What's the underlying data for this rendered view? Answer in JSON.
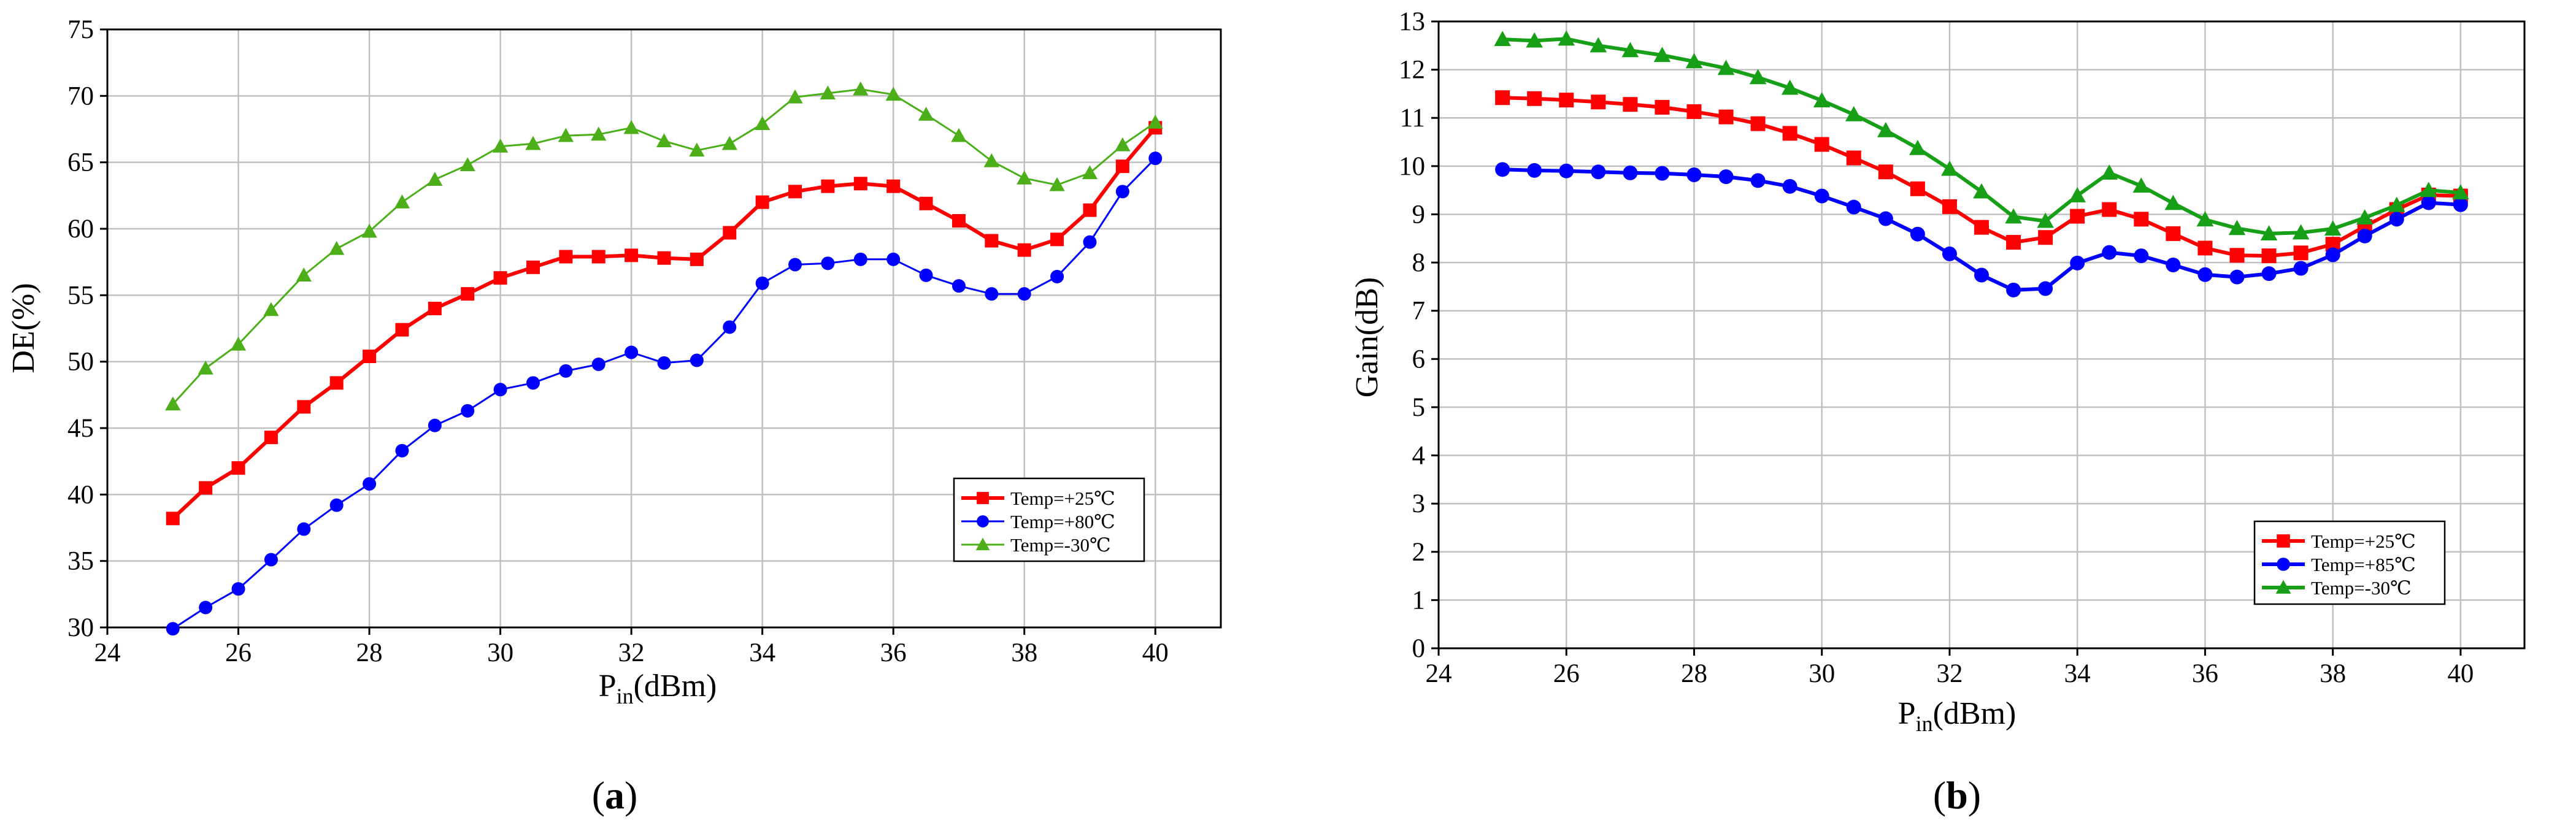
{
  "figure": {
    "panel_labels": [
      {
        "open": "(",
        "letter": "a",
        "close": ")"
      },
      {
        "open": "(",
        "letter": "b",
        "close": ")"
      }
    ]
  },
  "chart_data": [
    {
      "id": "a",
      "type": "line",
      "title": "",
      "xlabel": {
        "main": "P",
        "sub": "in",
        "rest": "(dBm)"
      },
      "ylabel": "DE(%)",
      "xlim": [
        24,
        41
      ],
      "ylim": [
        30,
        75
      ],
      "xticks": [
        24,
        26,
        28,
        30,
        32,
        34,
        36,
        38,
        40
      ],
      "yticks": [
        30,
        35,
        40,
        45,
        50,
        55,
        60,
        65,
        70,
        75
      ],
      "grid": true,
      "legend_position": "lower-right",
      "x": [
        25,
        25.5,
        26,
        26.5,
        27,
        27.5,
        28,
        28.5,
        29,
        29.5,
        30,
        30.5,
        31,
        31.5,
        32,
        32.5,
        33,
        33.5,
        34,
        34.5,
        35,
        35.5,
        36,
        36.5,
        37,
        37.5,
        38,
        38.5,
        39,
        39.5,
        40
      ],
      "series": [
        {
          "name": "Temp=+25℃",
          "color": "#ff0000",
          "marker": "square",
          "line_weight": "thick",
          "values": [
            38.2,
            40.5,
            42.0,
            44.3,
            46.6,
            48.4,
            50.4,
            52.4,
            54.0,
            55.1,
            56.3,
            57.1,
            57.9,
            57.9,
            58.0,
            57.8,
            57.7,
            59.7,
            62.0,
            62.8,
            63.2,
            63.4,
            63.2,
            61.9,
            60.6,
            59.1,
            58.4,
            59.2,
            61.4,
            64.7,
            67.6
          ]
        },
        {
          "name": "Temp=+80℃",
          "color": "#0000ff",
          "marker": "circle",
          "line_weight": "thin",
          "values": [
            29.9,
            31.5,
            32.9,
            35.1,
            37.4,
            39.2,
            40.8,
            43.3,
            45.2,
            46.3,
            47.9,
            48.4,
            49.3,
            49.8,
            50.7,
            49.9,
            50.1,
            52.6,
            55.9,
            57.3,
            57.4,
            57.7,
            57.7,
            56.5,
            55.7,
            55.1,
            55.1,
            56.4,
            59.0,
            62.8,
            65.3
          ]
        },
        {
          "name": "Temp=-30℃",
          "color": "#4caf1a",
          "marker": "triangle",
          "line_weight": "thin",
          "values": [
            46.8,
            49.5,
            51.3,
            53.9,
            56.5,
            58.5,
            59.8,
            62.0,
            63.7,
            64.8,
            66.2,
            66.4,
            67.0,
            67.1,
            67.6,
            66.6,
            65.9,
            66.4,
            67.9,
            69.9,
            70.2,
            70.5,
            70.1,
            68.6,
            67.0,
            65.1,
            63.8,
            63.3,
            64.2,
            66.3,
            68.0
          ]
        }
      ]
    },
    {
      "id": "b",
      "type": "line",
      "title": "",
      "xlabel": {
        "main": "P",
        "sub": "in",
        "rest": "(dBm)"
      },
      "ylabel": "Gain(dB)",
      "xlim": [
        24,
        41
      ],
      "ylim": [
        0,
        13
      ],
      "xticks": [
        24,
        26,
        28,
        30,
        32,
        34,
        36,
        38,
        40
      ],
      "yticks": [
        0,
        1,
        2,
        3,
        4,
        5,
        6,
        7,
        8,
        9,
        10,
        11,
        12,
        13
      ],
      "grid": true,
      "legend_position": "lower-right",
      "x": [
        25,
        25.5,
        26,
        26.5,
        27,
        27.5,
        28,
        28.5,
        29,
        29.5,
        30,
        30.5,
        31,
        31.5,
        32,
        32.5,
        33,
        33.5,
        34,
        34.5,
        35,
        35.5,
        36,
        36.5,
        37,
        37.5,
        38,
        38.5,
        39,
        39.5,
        40
      ],
      "series": [
        {
          "name": "Temp=+25℃",
          "color": "#ff0000",
          "marker": "square",
          "line_weight": "thick",
          "values": [
            11.42,
            11.4,
            11.37,
            11.33,
            11.28,
            11.22,
            11.13,
            11.02,
            10.88,
            10.68,
            10.45,
            10.17,
            9.88,
            9.53,
            9.16,
            8.73,
            8.42,
            8.52,
            8.96,
            9.1,
            8.9,
            8.6,
            8.3,
            8.15,
            8.14,
            8.2,
            8.38,
            8.75,
            9.1,
            9.4,
            9.38
          ]
        },
        {
          "name": "Temp=+85℃",
          "color": "#0000ff",
          "marker": "circle",
          "line_weight": "thick",
          "values": [
            9.93,
            9.91,
            9.9,
            9.88,
            9.86,
            9.85,
            9.82,
            9.78,
            9.7,
            9.58,
            9.38,
            9.15,
            8.91,
            8.59,
            8.18,
            7.74,
            7.43,
            7.46,
            7.99,
            8.21,
            8.14,
            7.95,
            7.75,
            7.7,
            7.77,
            7.88,
            8.16,
            8.55,
            8.9,
            9.24,
            9.2
          ]
        },
        {
          "name": "Temp=-30℃",
          "color": "#17a017",
          "marker": "triangle",
          "line_weight": "thick",
          "values": [
            12.63,
            12.6,
            12.64,
            12.5,
            12.4,
            12.3,
            12.17,
            12.03,
            11.84,
            11.62,
            11.36,
            11.07,
            10.74,
            10.37,
            9.94,
            9.47,
            8.95,
            8.86,
            9.39,
            9.86,
            9.59,
            9.23,
            8.89,
            8.71,
            8.6,
            8.62,
            8.7,
            8.93,
            9.19,
            9.5,
            9.45
          ]
        }
      ]
    }
  ]
}
